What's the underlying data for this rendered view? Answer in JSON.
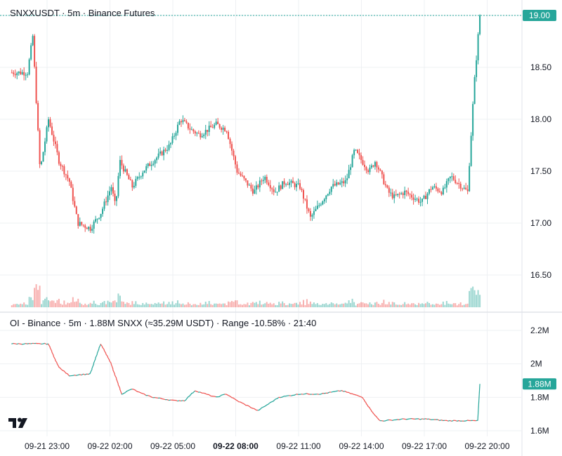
{
  "price_panel": {
    "title": "SNXXUSDT · 5m · Binance Futures",
    "last_price_label": "19.00",
    "colors": {
      "up": "#26a69a",
      "down": "#ef5350",
      "badge": "#26a69a",
      "grid": "#eef0f3",
      "axis_text": "#131722"
    }
  },
  "oi_panel": {
    "title": "OI - Binance · 5m · 1.88M SNXX (≈35.29M USDT) · Range -10.58% · 21:40",
    "last_value_label": "1.88M"
  },
  "chart_data": [
    {
      "type": "candlestick",
      "title": "SNXXUSDT · 5m · Binance Futures",
      "y_ticks": [
        "19.00",
        "18.50",
        "18.00",
        "17.50",
        "17.00",
        "16.50"
      ],
      "ylim": [
        16.2,
        19.1
      ],
      "x_ticks": [
        "09-21 23:00",
        "09-22 02:00",
        "09-22 05:00",
        "09-22 08:00",
        "09-22 11:00",
        "09-22 14:00",
        "09-22 17:00",
        "09-22 20:00"
      ],
      "bold_x_tick": "09-22 08:00",
      "last_price": 19.0,
      "keypoints_time_hours": [
        0,
        0.25,
        0.6,
        1.0,
        1.5,
        2.0,
        2.4,
        3.0,
        3.5,
        4.0,
        4.2,
        4.4,
        5.0,
        5.5,
        6.0,
        6.8,
        7.3,
        7.8,
        8.2,
        9.0,
        9.5,
        10.0,
        10.8,
        11.3,
        11.8,
        12.3,
        13.0,
        13.5,
        14.5,
        15.2,
        15.6,
        16.3,
        16.6,
        17.2,
        17.5,
        18.0,
        18.8,
        19.3,
        19.8,
        20.2,
        21.0,
        21.3,
        21.5,
        21.667
      ],
      "keypoints_close": [
        18.45,
        18.8,
        17.5,
        18.0,
        17.6,
        17.4,
        17.0,
        16.95,
        17.1,
        17.35,
        17.15,
        17.6,
        17.35,
        17.5,
        17.6,
        17.75,
        18.0,
        17.9,
        17.85,
        17.95,
        17.9,
        17.5,
        17.3,
        17.45,
        17.3,
        17.4,
        17.35,
        17.05,
        17.35,
        17.4,
        17.7,
        17.5,
        17.6,
        17.3,
        17.25,
        17.3,
        17.2,
        17.35,
        17.3,
        17.45,
        17.3,
        18.3,
        18.8,
        19.0
      ],
      "volume_note": "volume histogram shown at bottom of price pane"
    },
    {
      "type": "step-line",
      "title": "OI - Binance · 5m · 1.88M SNXX (≈35.29M USDT) · Range -10.58% · 21:40",
      "y_ticks": [
        "2.2M",
        "2M",
        "1.8M",
        "1.6M"
      ],
      "ylim": [
        1.57,
        2.28
      ],
      "last_value": 1.88,
      "keypoints_time_hours": [
        0,
        1.0,
        1.5,
        2.0,
        3.0,
        3.5,
        4.0,
        4.5,
        5.0,
        5.5,
        6.0,
        7.0,
        7.5,
        8.0,
        9.0,
        9.5,
        10.0,
        11.0,
        12.0,
        13.0,
        14.0,
        15.0,
        16.0,
        16.3,
        16.8,
        17.0,
        18.0,
        19.0,
        20.0,
        21.0,
        21.6,
        21.667
      ],
      "keypoints_value_M": [
        2.12,
        2.12,
        1.98,
        1.93,
        1.94,
        2.12,
        2.0,
        1.82,
        1.85,
        1.82,
        1.8,
        1.78,
        1.78,
        1.84,
        1.8,
        1.82,
        1.78,
        1.72,
        1.8,
        1.82,
        1.82,
        1.84,
        1.8,
        1.74,
        1.66,
        1.66,
        1.67,
        1.67,
        1.66,
        1.66,
        1.66,
        1.88
      ]
    }
  ]
}
